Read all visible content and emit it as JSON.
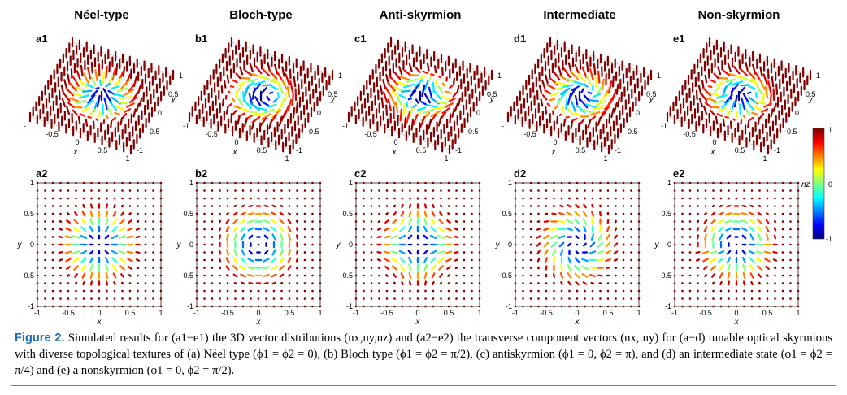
{
  "columns": [
    {
      "title": "Néel-type",
      "label_top": "a1",
      "label_bottom": "a2",
      "mode": "neel"
    },
    {
      "title": "Bloch-type",
      "label_top": "b1",
      "label_bottom": "b2",
      "mode": "bloch"
    },
    {
      "title": "Anti-skyrmion",
      "label_top": "c1",
      "label_bottom": "c2",
      "mode": "anti"
    },
    {
      "title": "Intermediate",
      "label_top": "d1",
      "label_bottom": "d2",
      "mode": "inter"
    },
    {
      "title": "Non-skyrmion",
      "label_top": "e1",
      "label_bottom": "e2",
      "mode": "non"
    }
  ],
  "axes": {
    "x_label": "x",
    "y_label": "y",
    "ticks": [
      "-1",
      "-0.5",
      "0",
      "0.5",
      "1"
    ]
  },
  "colorbar": {
    "label": "nz",
    "ticks": [
      "1",
      "0",
      "-1"
    ],
    "range": [
      -1,
      1
    ],
    "colormap": "jet"
  },
  "caption": {
    "figure_label": "Figure 2.",
    "text": "Simulated results for (a1−e1) the 3D vector distributions (nx,ny,nz) and (a2−e2) the transverse component vectors (nx, ny) for (a−d) tunable optical skyrmions with diverse topological textures of (a) Néel type (ϕ1 = ϕ2 = 0), (b) Bloch type (ϕ1 = ϕ2 = π/2), (c) antiskyrmion (ϕ1 = 0, ϕ2 = π), and (d) an intermediate state (ϕ1 = ϕ2 = π/4) and (e) a nonskyrmion (ϕ1 = 0, ϕ2 = π/2)."
  },
  "colors": {
    "caption_label": "#1f6fb2",
    "rule": "#3a8fd0"
  }
}
